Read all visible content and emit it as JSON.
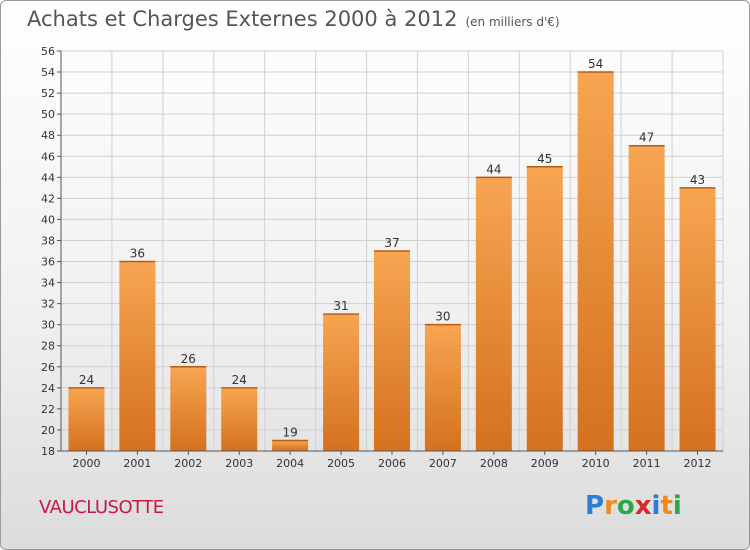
{
  "header": {
    "title": "Achats et Charges Externes 2000 à 2012",
    "unit": "(en milliers d'€)"
  },
  "footer": {
    "city": "VAUCLUSOTTE",
    "logo": {
      "letters": [
        "P",
        "r",
        "o",
        "x",
        "i",
        "t",
        "i"
      ],
      "colors": [
        "#2a7fd4",
        "#f08a1c",
        "#2aa84a",
        "#d42a2a",
        "#2a7fd4",
        "#f08a1c",
        "#2aa84a"
      ]
    }
  },
  "chart_data": {
    "type": "bar",
    "title": "Achats et Charges Externes 2000 à 2012",
    "subtitle": "(en milliers d'€)",
    "categories": [
      "2000",
      "2001",
      "2002",
      "2003",
      "2004",
      "2005",
      "2006",
      "2007",
      "2008",
      "2009",
      "2010",
      "2011",
      "2012"
    ],
    "values": [
      24,
      36,
      26,
      24,
      19,
      31,
      37,
      30,
      44,
      45,
      54,
      47,
      43
    ],
    "ylim": [
      18,
      56
    ],
    "yticks": [
      18,
      20,
      22,
      24,
      26,
      28,
      30,
      32,
      34,
      36,
      38,
      40,
      42,
      44,
      46,
      48,
      50,
      52,
      54,
      56
    ],
    "grid": true,
    "colors": {
      "bar_top": "#f7a552",
      "bar_bottom": "#d4711e",
      "grid": "#d0d0d0"
    }
  }
}
